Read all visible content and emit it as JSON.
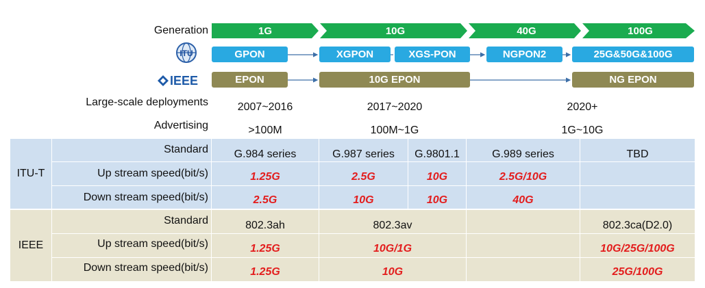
{
  "labels": {
    "generation": "Generation",
    "deployments": "Large-scale deployments",
    "advertising": "Advertising",
    "standard": "Standard",
    "up": "Up stream speed(bit/s)",
    "down": "Down stream speed(bit/s)",
    "itut": "ITU-T",
    "ieee_row": "IEEE",
    "ieee_logo": "IEEE"
  },
  "generations": [
    "1G",
    "10G",
    "40G",
    "100G"
  ],
  "itu_boxes": [
    "GPON",
    "XGPON",
    "XGS-PON",
    "NGPON2",
    "25G&50G&100G"
  ],
  "ieee_boxes": [
    "EPON",
    "10G EPON",
    "NG EPON"
  ],
  "deployments": [
    "2007~2016",
    "2017~2020",
    "2020+"
  ],
  "advertising": [
    "&gt;100M",
    "100M~1G",
    "1G~10G"
  ],
  "itu_table": {
    "standard": [
      "G.984 series",
      "G.987 series",
      "G.9801.1",
      "G.989 series",
      "TBD"
    ],
    "up": [
      "1.25G",
      "2.5G",
      "10G",
      "2.5G/10G"
    ],
    "down": [
      "2.5G",
      "10G",
      "10G",
      "40G"
    ]
  },
  "ieee_table": {
    "standard": [
      "802.3ah",
      "802.3av",
      "802.3ca(D2.0)"
    ],
    "up": [
      "1.25G",
      "10G/1G",
      "10G/25G/100G"
    ],
    "down": [
      "1.25G",
      "10G",
      "25G/100G"
    ]
  },
  "colors": {
    "green": "#1aab4f",
    "itu_blue": "#29a9e1",
    "ieee_olive": "#8f8954",
    "red": "#e31d1d"
  }
}
